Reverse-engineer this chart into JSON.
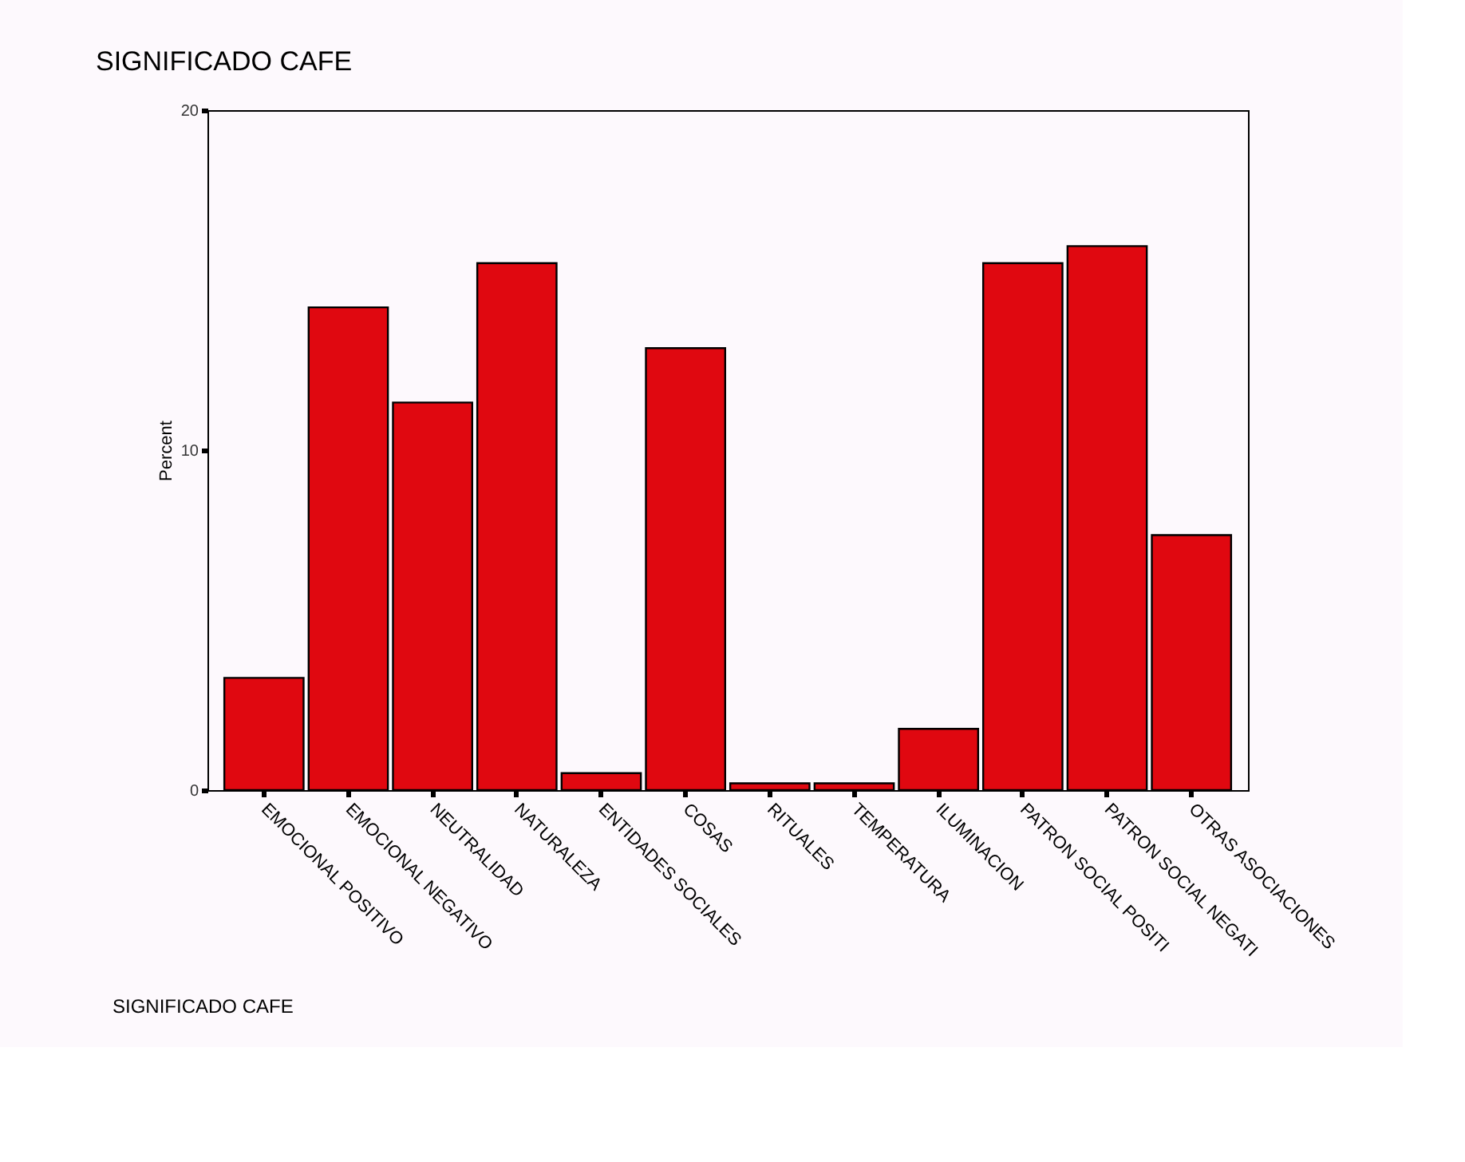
{
  "chart_data": {
    "type": "bar",
    "title": "SIGNIFICADO CAFE",
    "xlabel": "SIGNIFICADO CAFE",
    "ylabel": "Percent",
    "categories": [
      "EMOCIONAL POSITIVO",
      "EMOCIONAL NEGATIVO",
      "NEUTRALIDAD",
      "NATURALEZA",
      "ENTIDADES SOCIALES",
      "COSAS",
      "RITUALES",
      "TEMPERATURA",
      "ILUMINACION",
      "PATRON SOCIAL POSITI",
      "PATRON SOCIAL NEGATI",
      "OTRAS ASOCIACIONES"
    ],
    "values": [
      3.3,
      14.2,
      11.4,
      15.5,
      0.5,
      13.0,
      0.2,
      0.2,
      1.8,
      15.5,
      16.0,
      7.5
    ],
    "color": "#e00810",
    "ylim": [
      0,
      20
    ],
    "yticks": [
      0,
      10,
      20
    ],
    "grid": false,
    "legend": false
  }
}
